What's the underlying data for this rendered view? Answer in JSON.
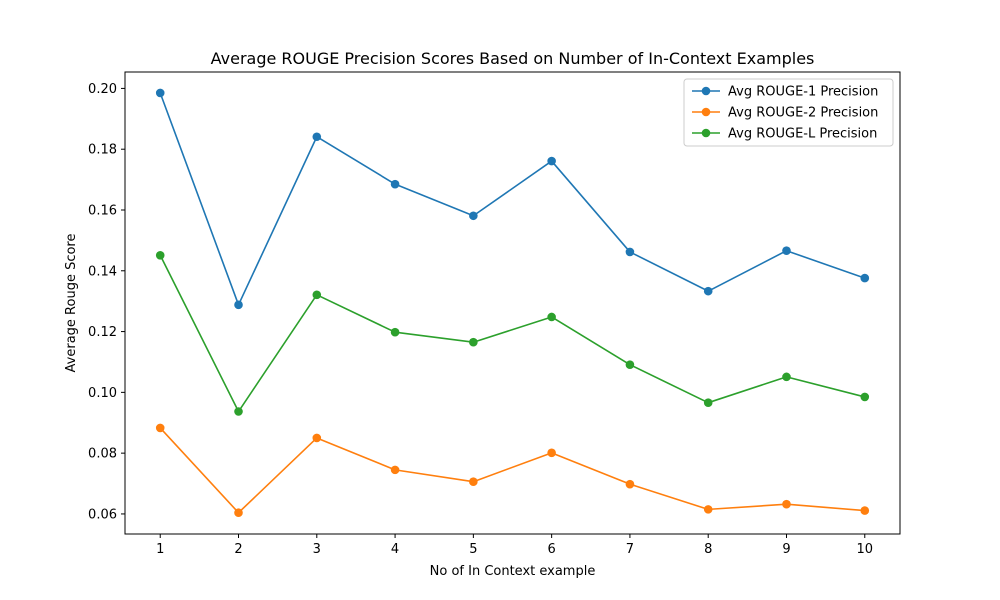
{
  "chart_data": {
    "type": "line",
    "title": "Average ROUGE Precision Scores Based on Number of In-Context Examples",
    "xlabel": "No of In Context example",
    "ylabel": "Average Rouge Score",
    "x": [
      1,
      2,
      3,
      4,
      5,
      6,
      7,
      8,
      9,
      10
    ],
    "x_tick_labels": [
      "1",
      "2",
      "3",
      "4",
      "5",
      "6",
      "7",
      "8",
      "9",
      "10"
    ],
    "y_ticks": [
      0.06,
      0.08,
      0.1,
      0.12,
      0.14,
      0.16,
      0.18,
      0.2
    ],
    "y_tick_labels": [
      "0.06",
      "0.08",
      "0.10",
      "0.12",
      "0.14",
      "0.16",
      "0.18",
      "0.20"
    ],
    "xlim": [
      0.55,
      10.45
    ],
    "ylim": [
      0.0534,
      0.2054
    ],
    "grid": false,
    "legend_position": "top-right",
    "series": [
      {
        "name": "Avg ROUGE-1 Precision",
        "color": "#1f77b4",
        "marker": "circle",
        "values": [
          0.1985,
          0.1288,
          0.1841,
          0.1685,
          0.1581,
          0.1761,
          0.1462,
          0.1333,
          0.1466,
          0.1376
        ]
      },
      {
        "name": "Avg ROUGE-2 Precision",
        "color": "#ff7f0e",
        "marker": "circle",
        "values": [
          0.0883,
          0.0604,
          0.085,
          0.0745,
          0.0706,
          0.0801,
          0.0698,
          0.0615,
          0.0632,
          0.0611
        ]
      },
      {
        "name": "Avg ROUGE-L Precision",
        "color": "#2ca02c",
        "marker": "circle",
        "values": [
          0.1451,
          0.0937,
          0.1321,
          0.1198,
          0.1165,
          0.1248,
          0.1091,
          0.0966,
          0.1051,
          0.0985
        ]
      }
    ]
  }
}
